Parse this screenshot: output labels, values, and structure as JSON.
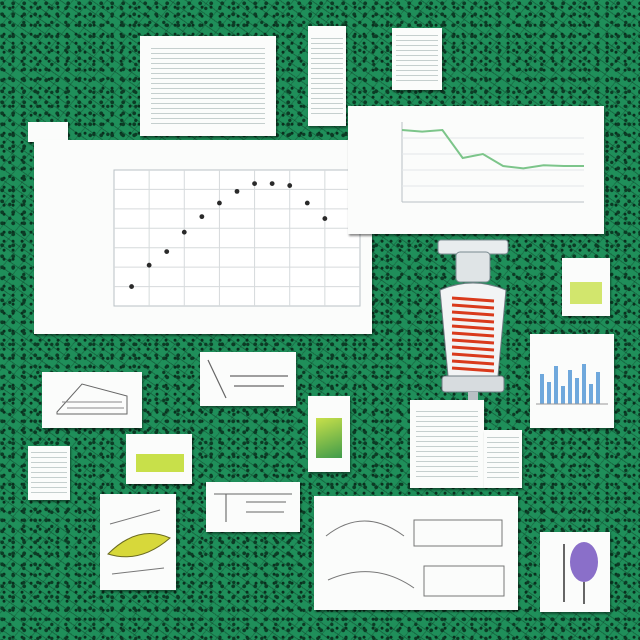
{
  "main_chart": {
    "title": "",
    "xlabel": "",
    "ylabel": ""
  },
  "chart_data": {
    "type": "scatter",
    "title": "",
    "xlabel": "",
    "ylabel": "",
    "x": [
      1,
      2,
      3,
      4,
      5,
      6,
      7,
      8,
      9,
      10,
      11,
      12
    ],
    "y": [
      1.0,
      2.1,
      2.8,
      3.8,
      4.6,
      5.3,
      5.9,
      6.3,
      6.3,
      6.2,
      5.3,
      4.5
    ],
    "xlim": [
      0,
      14
    ],
    "ylim": [
      0,
      7
    ],
    "grid": true,
    "marker_color": "#2a2a2a"
  },
  "side_chart": {
    "type": "line",
    "line_color": "#7cc58a",
    "values": [
      0.9,
      0.88,
      0.9,
      0.55,
      0.6,
      0.45,
      0.42,
      0.46,
      0.45,
      0.45
    ]
  },
  "colors": {
    "background": "#1f8f5a",
    "card": "#fbfcfb",
    "device_red": "#d93a1c",
    "lime": "#c8e04a",
    "violet": "#8a6fc9"
  }
}
